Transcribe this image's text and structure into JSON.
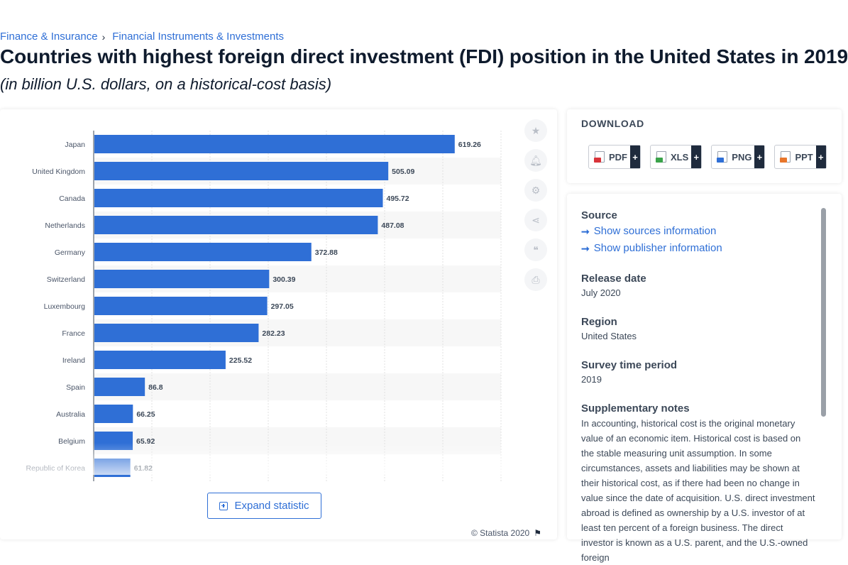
{
  "breadcrumb": {
    "items": [
      {
        "label": "Finance & Insurance"
      },
      {
        "label": "Financial Instruments & Investments"
      }
    ],
    "separator": "›"
  },
  "page": {
    "title": "Countries with highest foreign direct investment (FDI) position in the United States in 2019",
    "subtitle": "(in billion U.S. dollars, on a historical-cost basis)"
  },
  "chart_data": {
    "type": "bar",
    "orientation": "horizontal",
    "categories": [
      "Japan",
      "United Kingdom",
      "Canada",
      "Netherlands",
      "Germany",
      "Switzerland",
      "Luxembourg",
      "France",
      "Ireland",
      "Spain",
      "Australia",
      "Belgium",
      "Republic of Korea"
    ],
    "values": [
      619.26,
      505.09,
      495.72,
      487.08,
      372.88,
      300.39,
      297.05,
      282.23,
      225.52,
      86.8,
      66.25,
      65.92,
      61.82
    ],
    "value_labels": [
      "619.26",
      "505.09",
      "495.72",
      "487.08",
      "372.88",
      "300.39",
      "297.05",
      "282.23",
      "225.52",
      "86.8",
      "66.25",
      "65.92",
      "61.82"
    ],
    "xlim": [
      0,
      700
    ],
    "grid": true,
    "bar_color": "#2f6fd6",
    "data_labels": true
  },
  "chart_ui": {
    "expand_label": "Expand statistic",
    "copyright": "© Statista 2020",
    "tools": [
      {
        "icon": "star-icon"
      },
      {
        "icon": "bell-icon"
      },
      {
        "icon": "gear-icon"
      },
      {
        "icon": "share-icon"
      },
      {
        "icon": "quote-icon"
      },
      {
        "icon": "print-icon"
      }
    ]
  },
  "download": {
    "title": "DOWNLOAD",
    "buttons": [
      {
        "label": "PDF",
        "icon": "pdf-file-icon",
        "color": "#d9343a"
      },
      {
        "label": "XLS",
        "icon": "xls-file-icon",
        "color": "#3aa34a"
      },
      {
        "label": "PNG",
        "icon": "png-file-icon",
        "color": "#2f6fd6"
      },
      {
        "label": "PPT",
        "icon": "ppt-file-icon",
        "color": "#e8762b"
      }
    ],
    "plus": "+"
  },
  "info": {
    "source_heading": "Source",
    "links": [
      "Show sources information",
      "Show publisher information"
    ],
    "release_heading": "Release date",
    "release_value": "July 2020",
    "region_heading": "Region",
    "region_value": "United States",
    "survey_heading": "Survey time period",
    "survey_value": "2019",
    "notes_heading": "Supplementary notes",
    "notes_text": "In accounting, historical cost is the original monetary value of an economic item. Historical cost is based on the stable measuring unit assumption. In some circumstances, assets and liabilities may be shown at their historical cost, as if there had been no change in value since the date of acquisition. U.S. direct investment abroad is defined as ownership by a U.S. investor of at least ten percent of a foreign business. The direct investor is known as a U.S. parent, and the U.S.-owned foreign"
  }
}
